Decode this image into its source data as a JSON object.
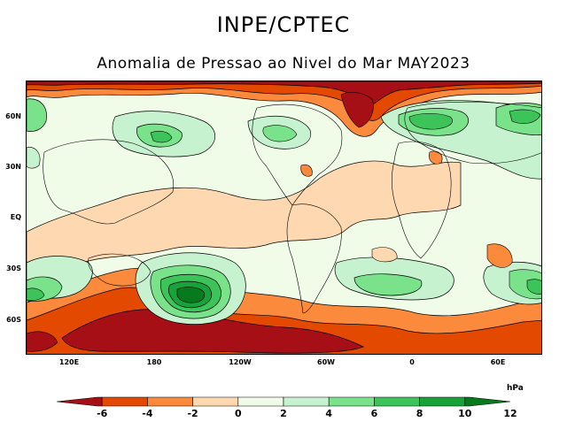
{
  "header": {
    "title": "INPE/CPTEC",
    "subtitle": "Anomalia de Pressao ao Nivel do Mar MAY2023"
  },
  "axes": {
    "lat_labels": [
      "60N",
      "30N",
      "EQ",
      "30S",
      "60S"
    ],
    "lon_labels": [
      "120E",
      "180",
      "120W",
      "60W",
      "0",
      "60E"
    ]
  },
  "colorbar": {
    "unit": "hPa",
    "tick_labels": [
      "-6",
      "-4",
      "-2",
      "0",
      "2",
      "4",
      "6",
      "8",
      "10",
      "12"
    ],
    "colors": [
      "#a50f15",
      "#e34a00",
      "#fb8a3c",
      "#fdd8b0",
      "#f0fbe8",
      "#c7f2cf",
      "#7be28c",
      "#3cc35a",
      "#17a33a",
      "#067a1c"
    ]
  }
}
